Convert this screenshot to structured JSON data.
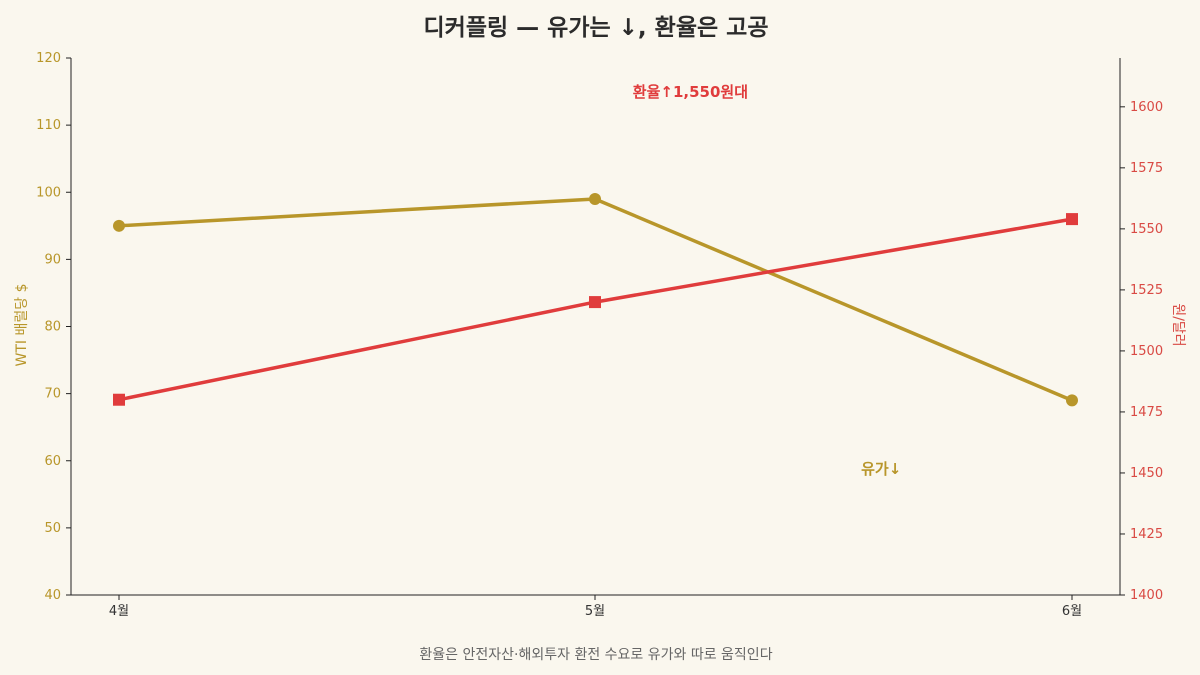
{
  "chart_data": {
    "type": "line",
    "title": "디커플링 — 유가는 ↓, 환율은 고공",
    "categories": [
      "4월",
      "5월",
      "6월"
    ],
    "y_left": {
      "label": "WTI 배럴당 $",
      "range": [
        40,
        120
      ],
      "ticks": [
        40,
        50,
        60,
        70,
        80,
        90,
        100,
        110,
        120
      ],
      "color": "#b8962a"
    },
    "y_right": {
      "label": "원/달러",
      "range": [
        1400,
        1620
      ],
      "ticks": [
        1400,
        1425,
        1450,
        1475,
        1500,
        1525,
        1550,
        1575,
        1600
      ],
      "color": "#d94a44"
    },
    "series": [
      {
        "axis": "left",
        "marker": "circle",
        "color": "#b8962a",
        "values": [
          95,
          99,
          69
        ]
      },
      {
        "axis": "right",
        "marker": "square",
        "color": "#e03c3c",
        "values": [
          1480,
          1520,
          1554
        ]
      }
    ],
    "annotations": [
      {
        "text": "환율↑1,550원대",
        "color": "#e03c3c",
        "category": 1.2,
        "axis": "right",
        "value": 1604
      },
      {
        "text": "유가↓",
        "color": "#b8962a",
        "category": 1.6,
        "axis": "left",
        "value": 58
      }
    ],
    "footnote": "환율은 안전자산·해외투자 환전 수요로 유가와 따로 움직인다",
    "grid": false
  }
}
